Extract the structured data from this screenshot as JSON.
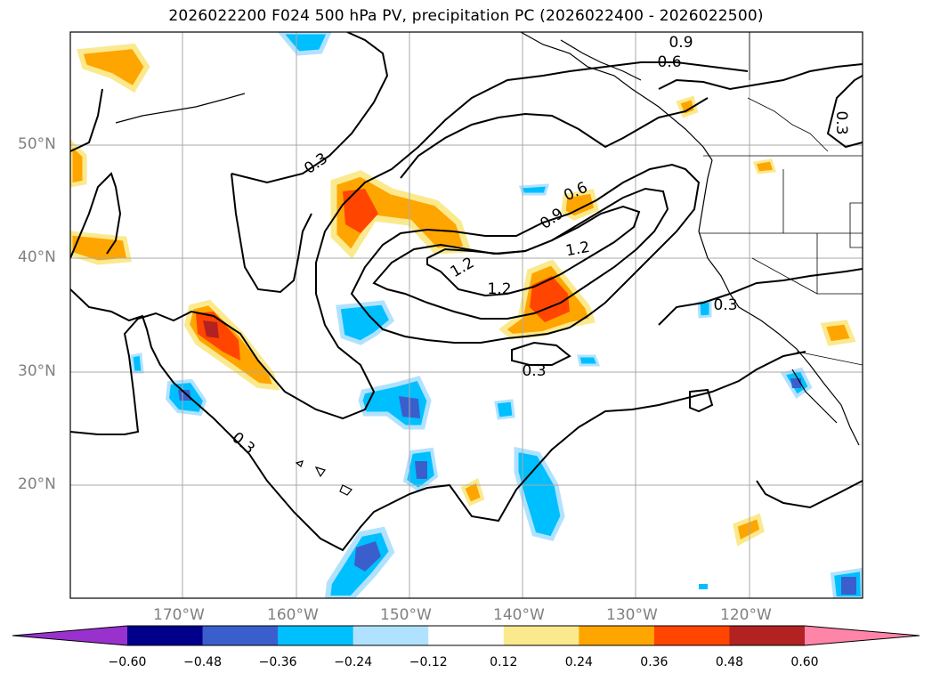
{
  "title": "2026022200 F024 500 hPa PV, precipitation PC (2026022400 - 2026022500)",
  "lat_labels": [
    "50°N",
    "40°N",
    "30°N",
    "20°N"
  ],
  "lon_labels": [
    "170°W",
    "160°W",
    "150°W",
    "140°W",
    "130°W",
    "120°W"
  ],
  "contour_labels": [
    "0.9",
    "0.6",
    "0.3",
    "0.3",
    "0.6",
    "0.9",
    "1.2",
    "1.2",
    "1.2",
    "0.3",
    "0.3",
    "0.3"
  ],
  "colorbar": {
    "ticks": [
      "−0.60",
      "−0.48",
      "−0.36",
      "−0.24",
      "−0.12",
      "0.12",
      "0.24",
      "0.36",
      "0.48",
      "0.60"
    ],
    "colors": [
      "#9932cc",
      "#00008b",
      "#3a5fcd",
      "#00bfff",
      "#b0e2ff",
      "#ffffff",
      "#fbe98d",
      "#ffa500",
      "#ff4500",
      "#b22222",
      "#ff85a8"
    ]
  }
}
